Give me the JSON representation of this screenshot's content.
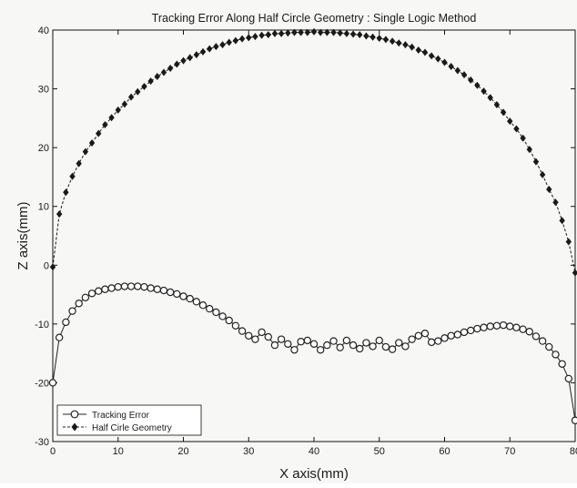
{
  "chart_data": {
    "type": "line",
    "title": "Tracking Error Along Half Circle Geometry : Single Logic Method",
    "xlabel": "X axis(mm)",
    "ylabel": "Z axis(mm)",
    "xlim": [
      0,
      80
    ],
    "ylim": [
      -30,
      40
    ],
    "xticks": [
      0,
      10,
      20,
      30,
      40,
      50,
      60,
      70,
      80
    ],
    "yticks": [
      -30,
      -20,
      -10,
      0,
      10,
      20,
      30,
      40
    ],
    "grid": false,
    "legend_position": "bottom-left",
    "series": [
      {
        "name": "Tracking Error",
        "marker": "circle-open",
        "color": "#222222",
        "x": [
          0,
          1,
          2,
          3,
          4,
          5,
          6,
          7,
          8,
          9,
          10,
          11,
          12,
          13,
          14,
          15,
          16,
          17,
          18,
          19,
          20,
          21,
          22,
          23,
          24,
          25,
          26,
          27,
          28,
          29,
          30,
          31,
          32,
          33,
          34,
          35,
          36,
          37,
          38,
          39,
          40,
          41,
          42,
          43,
          44,
          45,
          46,
          47,
          48,
          49,
          50,
          51,
          52,
          53,
          54,
          55,
          56,
          57,
          58,
          59,
          60,
          61,
          62,
          63,
          64,
          65,
          66,
          67,
          68,
          69,
          70,
          71,
          72,
          73,
          74,
          75,
          76,
          77,
          78,
          79,
          80
        ],
        "y": [
          -20,
          -12.3,
          -9.7,
          -7.8,
          -6.5,
          -5.5,
          -4.8,
          -4.4,
          -4.1,
          -3.9,
          -3.7,
          -3.6,
          -3.6,
          -3.6,
          -3.7,
          -3.9,
          -4.1,
          -4.3,
          -4.6,
          -4.9,
          -5.3,
          -5.7,
          -6.2,
          -6.8,
          -7.4,
          -8.0,
          -8.7,
          -9.4,
          -10.3,
          -11.2,
          -12.0,
          -12.6,
          -11.4,
          -12.2,
          -13.6,
          -12.6,
          -13.4,
          -14.4,
          -13.0,
          -12.8,
          -13.4,
          -14.4,
          -13.6,
          -12.9,
          -14.0,
          -12.8,
          -13.6,
          -14.2,
          -13.2,
          -13.8,
          -12.8,
          -13.9,
          -14.3,
          -13.2,
          -13.8,
          -12.6,
          -12.0,
          -11.6,
          -13.1,
          -12.9,
          -12.4,
          -12.0,
          -11.8,
          -11.4,
          -11.1,
          -10.8,
          -10.6,
          -10.4,
          -10.3,
          -10.2,
          -10.4,
          -10.6,
          -10.9,
          -11.3,
          -12.1,
          -12.9,
          -13.9,
          -15.2,
          -16.8,
          -19.3,
          -26.4
        ]
      },
      {
        "name": "Half Cirle Geometry",
        "marker": "diamond-filled",
        "color": "#1a1a1a",
        "x": [
          0,
          1,
          2,
          3,
          4,
          5,
          6,
          7,
          8,
          9,
          10,
          11,
          12,
          13,
          14,
          15,
          16,
          17,
          18,
          19,
          20,
          21,
          22,
          23,
          24,
          25,
          26,
          27,
          28,
          29,
          30,
          31,
          32,
          33,
          34,
          35,
          36,
          37,
          38,
          39,
          40,
          41,
          42,
          43,
          44,
          45,
          46,
          47,
          48,
          49,
          50,
          51,
          52,
          53,
          54,
          55,
          56,
          57,
          58,
          59,
          60,
          61,
          62,
          63,
          64,
          65,
          66,
          67,
          68,
          69,
          70,
          71,
          72,
          73,
          74,
          75,
          76,
          77,
          78,
          79,
          80
        ],
        "y": [
          -0.3,
          8.7,
          12.4,
          15.1,
          17.3,
          19.3,
          20.8,
          22.4,
          23.9,
          25.1,
          26.4,
          27.4,
          28.6,
          29.5,
          30.4,
          31.3,
          32.1,
          32.8,
          33.5,
          34.2,
          34.8,
          35.3,
          35.8,
          36.3,
          36.8,
          37.2,
          37.5,
          37.9,
          38.2,
          38.5,
          38.7,
          38.9,
          39.1,
          39.2,
          39.4,
          39.4,
          39.5,
          39.6,
          39.6,
          39.6,
          39.7,
          39.6,
          39.6,
          39.6,
          39.5,
          39.4,
          39.3,
          39.2,
          39.0,
          38.8,
          38.6,
          38.4,
          38.1,
          37.8,
          37.5,
          37.1,
          36.6,
          36.2,
          35.6,
          35.1,
          34.5,
          33.8,
          33.1,
          32.4,
          31.5,
          30.6,
          29.6,
          28.5,
          27.3,
          26.0,
          24.5,
          23.2,
          21.6,
          19.7,
          17.6,
          15.4,
          12.9,
          10.7,
          7.6,
          4.0,
          -1.3
        ]
      }
    ]
  }
}
